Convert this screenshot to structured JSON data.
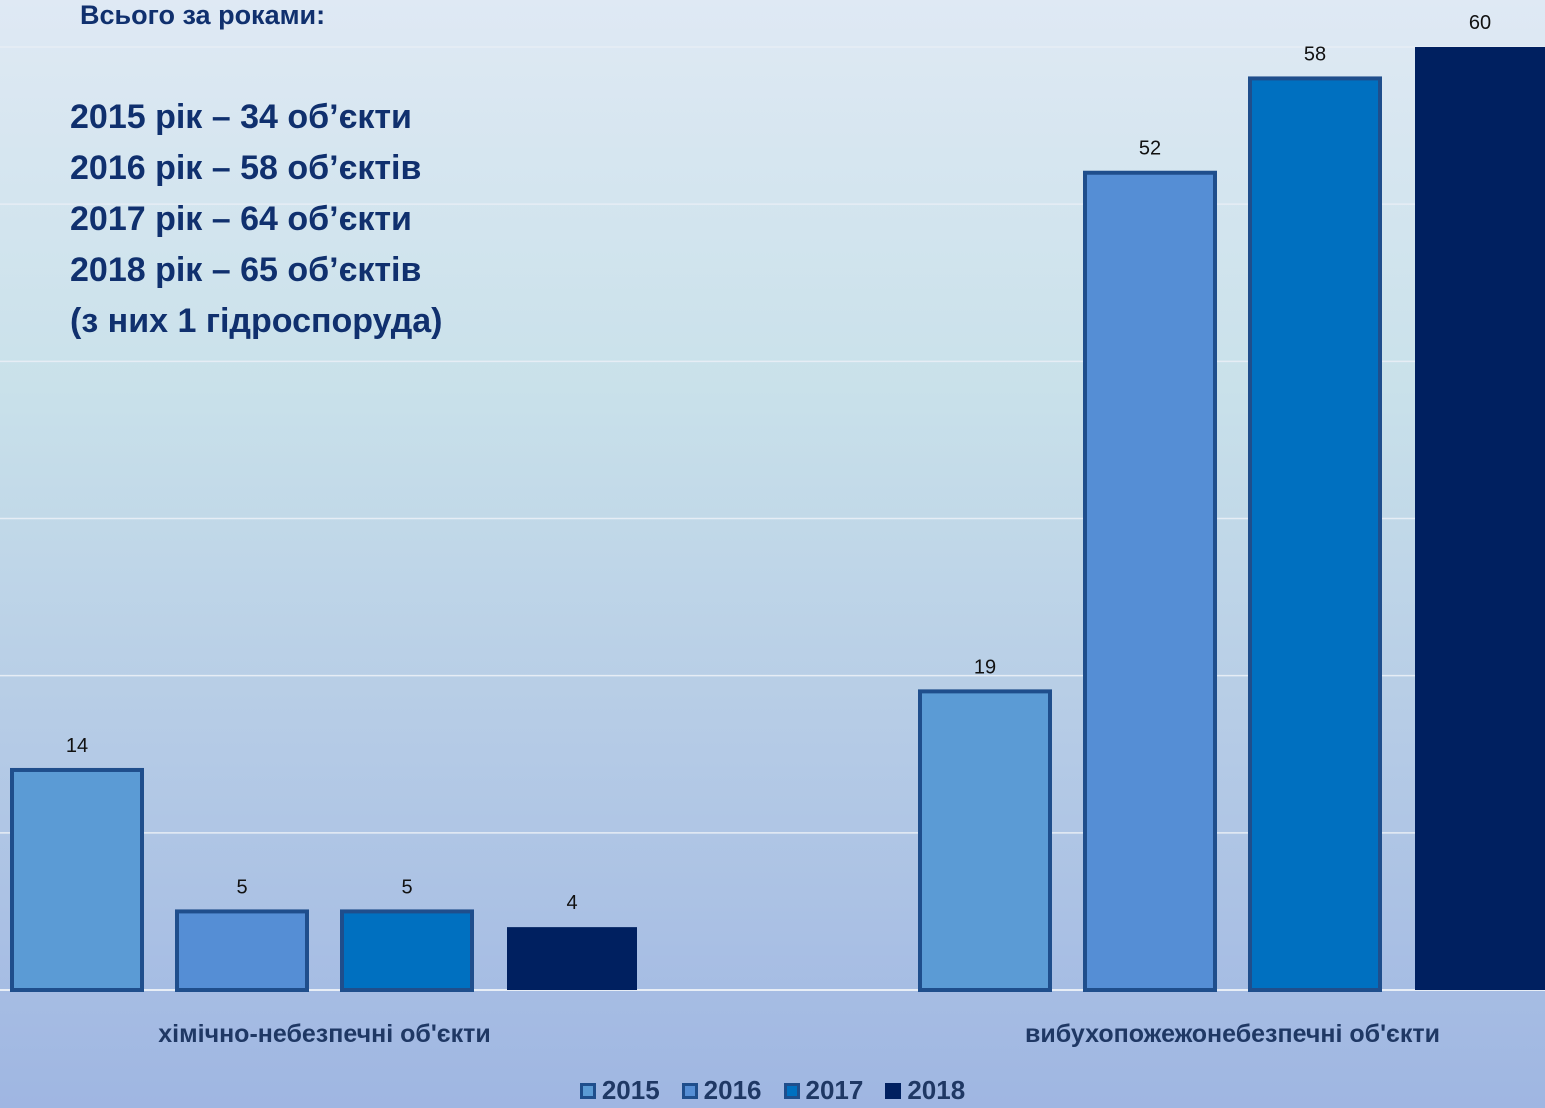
{
  "info": {
    "title": "Всього за роками:",
    "lines": [
      "2015 рік – 34 об’єкти",
      "2016 рік – 58 об’єктів",
      "2017 рік – 64 об’єкти",
      "2018 рік – 65 об’єктів",
      "(з них 1 гідроспоруда)"
    ]
  },
  "chart_data": {
    "type": "bar",
    "categories": [
      "хімічно-небезпечні об'єкти",
      "вибухопожежонебезпечні об'єкти"
    ],
    "series": [
      {
        "name": "2015",
        "values": [
          14,
          19
        ],
        "color": "#5b9bd5"
      },
      {
        "name": "2016",
        "values": [
          5,
          52
        ],
        "color": "#558ed5"
      },
      {
        "name": "2017",
        "values": [
          5,
          58
        ],
        "color": "#0070c0"
      },
      {
        "name": "2018",
        "values": [
          4,
          60
        ],
        "color": "#002060"
      }
    ],
    "ylim": [
      0,
      60
    ],
    "grid": true,
    "legend": "bottom",
    "data_labels": true
  }
}
